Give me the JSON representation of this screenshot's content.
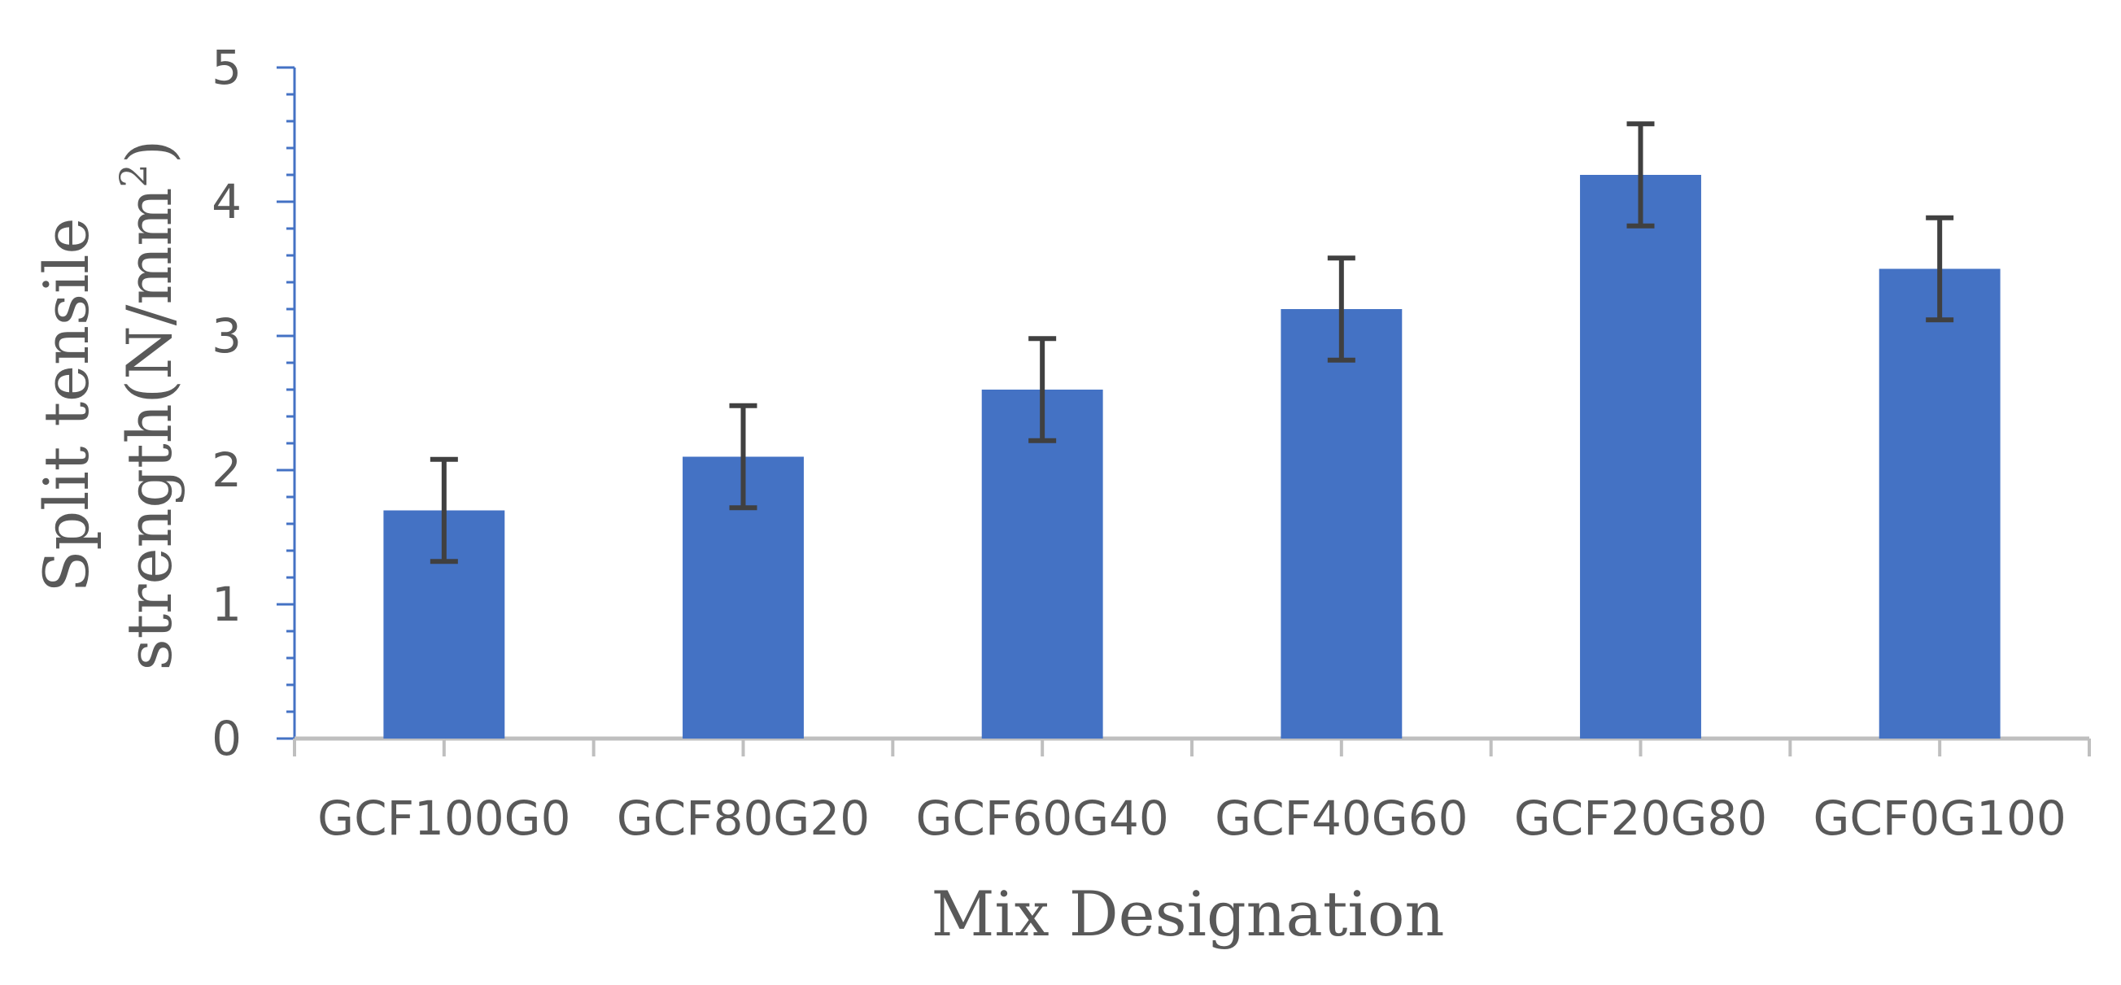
{
  "chart_data": {
    "type": "bar",
    "title": "",
    "xlabel": "Mix Designation",
    "ylabel_line1": "Split tensile",
    "ylabel_line2": "strength(N/mm",
    "ylabel_superscript": "2",
    "ylabel_close": ")",
    "categories": [
      "GCF100G0",
      "GCF80G20",
      "GCF60G40",
      "GCF40G60",
      "GCF20G80",
      "GCF0G100"
    ],
    "series": [
      {
        "values": [
          1.7,
          2.1,
          2.6,
          3.2,
          4.2,
          3.5
        ],
        "error": [
          0.38,
          0.38,
          0.38,
          0.38,
          0.38,
          0.38
        ],
        "color": "#4472C4"
      }
    ],
    "ylim": [
      0,
      5
    ],
    "yticks": [
      "0",
      "1",
      "2",
      "3",
      "4",
      "5"
    ],
    "grid": false,
    "legend": "none",
    "colors": {
      "bar": "#4472C4",
      "error_bar": "#404040",
      "y_axis": "#4472C4",
      "x_axis": "#BFBFBF",
      "text": "#595959"
    }
  }
}
